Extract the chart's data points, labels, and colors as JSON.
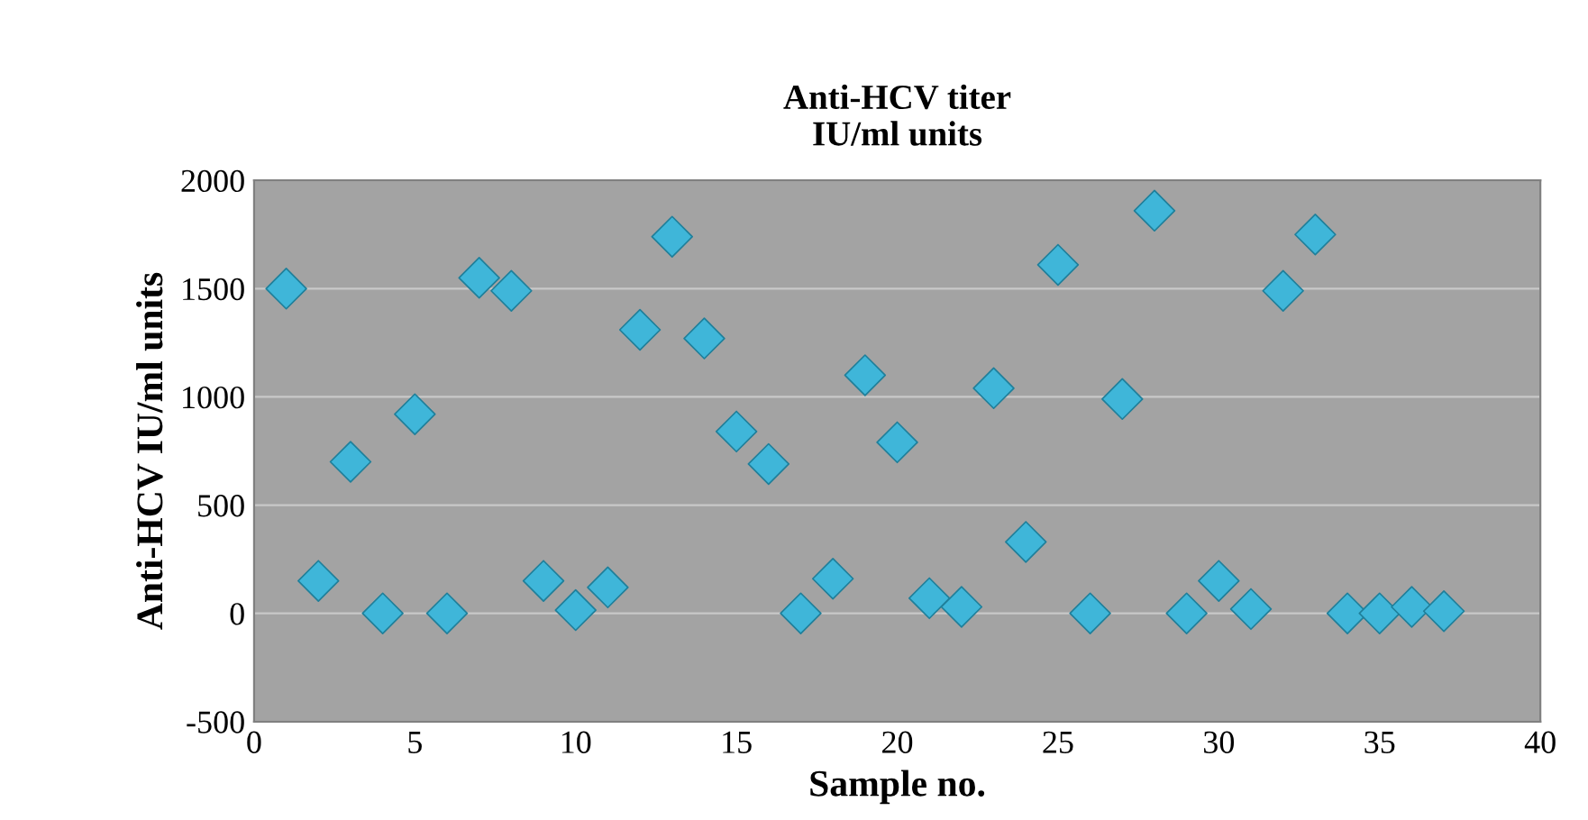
{
  "chart_data": {
    "type": "scatter",
    "title": "Anti-HCV titer\nIU/ml units",
    "xlabel": "Sample no.",
    "ylabel": "Anti-HCV IU/ml units",
    "x": [
      1,
      2,
      3,
      4,
      5,
      6,
      7,
      8,
      9,
      10,
      11,
      12,
      13,
      14,
      15,
      16,
      17,
      18,
      19,
      20,
      21,
      22,
      23,
      24,
      25,
      26,
      27,
      28,
      29,
      30,
      31,
      32,
      33,
      34,
      35,
      36,
      37
    ],
    "series": [
      {
        "color": "#3fb6d9",
        "values": [
          1500,
          150,
          700,
          0,
          920,
          0,
          1550,
          1490,
          150,
          15,
          120,
          1310,
          1740,
          1270,
          840,
          690,
          0,
          160,
          1100,
          790,
          70,
          30,
          1040,
          330,
          1610,
          0,
          990,
          1860,
          0,
          150,
          20,
          1490,
          1750,
          0,
          0,
          30,
          10
        ]
      }
    ],
    "xlim": [
      0,
      40
    ],
    "xticks": [
      0,
      5,
      10,
      15,
      20,
      25,
      30,
      35,
      40
    ],
    "ylim": [
      -500,
      2000
    ],
    "yticks": [
      -500,
      0,
      500,
      1000,
      1500,
      2000
    ],
    "grid": "y",
    "marker": "diamond",
    "legend": false
  }
}
